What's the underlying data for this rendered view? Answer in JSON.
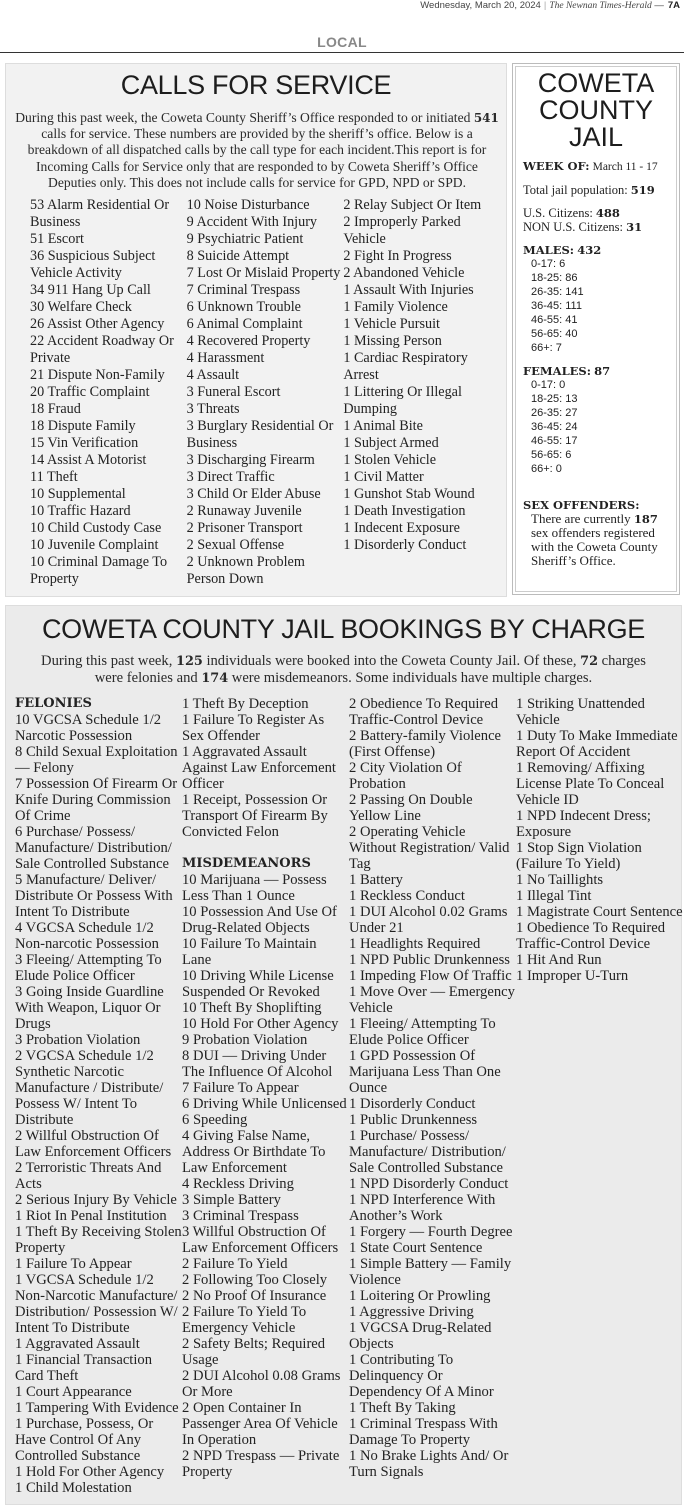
{
  "masthead": {
    "date": "Wednesday, March 20, 2024",
    "publication": "The Newnan Times-Herald",
    "page": "7A"
  },
  "section": "LOCAL",
  "calls": {
    "title": "CALLS FOR SERVICE",
    "intro_before": "During this past week, the Coweta County Sheriff’s Office responded to or initiated ",
    "count": "541",
    "intro_after": " calls for service. These numbers are provided by the sheriff’s office. Below is a breakdown of all dispatched calls by the call type for each incident.This report is for Incoming Calls for Service only that are responded to by Coweta Sheriff’s Office Deputies only. This does not include calls for service for GPD, NPD or SPD.",
    "items": [
      "53 Alarm Residential Or Business",
      "51 Escort",
      "36 Suspicious Subject Vehicle Activity",
      "34 911 Hang Up Call",
      "30 Welfare Check",
      "26 Assist Other Agency",
      "22 Accident Roadway Or Private",
      "21 Dispute Non-Family",
      "20 Traffic Complaint",
      "18 Fraud",
      "18 Dispute Family",
      "15 Vin Verification",
      "14 Assist A Motorist",
      "11 Theft",
      "10 Supplemental",
      "10 Traffic Hazard",
      "10 Child Custody Case",
      "10 Juvenile Complaint",
      "10 Criminal Damage To Property",
      "10 Noise Disturbance",
      "9 Accident With Injury",
      "9 Psychiatric Patient",
      "8 Suicide Attempt",
      "7 Lost Or Mislaid Property",
      "7 Criminal Trespass",
      "6 Unknown Trouble",
      "6 Animal Complaint",
      "4 Recovered Property",
      "4 Harassment",
      "4 Assault",
      "3 Funeral Escort",
      "3 Threats",
      "3 Burglary Residential Or Business",
      "3 Discharging Firearm",
      "3 Direct Traffic",
      "3 Child Or Elder Abuse",
      "2 Runaway Juvenile",
      "2 Prisoner Transport",
      "2 Sexual Offense",
      "2 Unknown Problem Person Down",
      "2 Relay Subject Or Item",
      "2 Improperly Parked Vehicle",
      "2 Fight In Progress",
      "2 Abandoned Vehicle",
      "1 Assault With Injuries",
      "1 Family Violence",
      "1 Vehicle Pursuit",
      "1 Missing Person",
      "1 Cardiac Respiratory Arrest",
      "1 Littering Or Illegal Dumping",
      "1 Animal Bite",
      "1 Subject Armed",
      "1 Stolen Vehicle",
      "1 Civil Matter",
      "1 Gunshot Stab Wound",
      "1 Death Investigation",
      "1 Indecent Exposure",
      "1 Disorderly Conduct"
    ]
  },
  "jail": {
    "title": "COWETA COUNTY JAIL",
    "week_label": "WEEK OF:",
    "week_value": "March 11 - 17",
    "population_label": "Total jail population:",
    "population_value": "519",
    "us_label": "U.S. Citizens:",
    "us_value": "488",
    "non_us_label": "NON U.S. Citizens:",
    "non_us_value": "31",
    "males_label": "MALES:",
    "males_value": "432",
    "males_ages": [
      "0-17: 6",
      "18-25: 86",
      "26-35: 141",
      "36-45: 111",
      "46-55: 41",
      "56-65: 40",
      "66+: 7"
    ],
    "females_label": "FEMALES:",
    "females_value": "87",
    "females_ages": [
      "0-17: 0",
      "18-25: 13",
      "26-35: 27",
      "36-45: 24",
      "46-55: 17",
      "56-65: 6",
      "66+: 0"
    ],
    "sex_offenders_label": "SEX OFFENDERS:",
    "sex_offenders_before": "There are currently ",
    "sex_offenders_value": "187",
    "sex_offenders_after": " sex offenders registered with the Coweta County Sheriff’s Office."
  },
  "bookings": {
    "title": "COWETA COUNTY JAIL BOOKINGS BY CHARGE",
    "intro_a": "During this past week, ",
    "individuals": "125",
    "intro_b": " individuals were booked into the Coweta County Jail. Of these, ",
    "felony_count": "72",
    "intro_c": " charges were felonies and ",
    "misdemeanor_count": "174",
    "intro_d": " were misdemeanors. Some individuals have multiple charges.",
    "felonies_heading": "FELONIES",
    "felonies": [
      "10 VGCSA Schedule 1/2 Narcotic Possession",
      "8 Child Sexual Exploitation — Felony",
      "7 Possession Of Firearm Or Knife During Commission Of Crime",
      "6 Purchase/ Possess/ Manufacture/ Distribution/ Sale Controlled Substance",
      "5 Manufacture/ Deliver/ Distribute Or Possess With Intent To Distribute",
      "4 VGCSA Schedule 1/2 Non-narcotic Possession",
      "3 Fleeing/ Attempting To Elude Police Officer",
      "3 Going Inside Guardline With Weapon, Liquor Or Drugs",
      "3 Probation Violation",
      "2 VGCSA Schedule 1/2 Synthetic Narcotic Manufacture / Distribute/ Possess W/ Intent To Distribute",
      "2 Willful Obstruction Of Law Enforcement Officers",
      "2 Terroristic Threats And Acts",
      "2 Serious Injury By Vehicle",
      "1 Riot In Penal Institution",
      "1 Theft By Receiving Stolen Property",
      "1 Failure To Appear",
      "1 VGCSA Schedule 1/2 Non-Narcotic Manufacture/ Distribution/ Possession W/ Intent To Distribute",
      "1 Aggravated Assault",
      "1 Financial Transaction Card Theft",
      "1 Court Appearance",
      "1 Tampering With Evidence",
      "1 Purchase, Possess, Or Have Control Of Any Controlled Substance",
      "1 Hold For Other Agency",
      "1 Child Molestation",
      "1 Theft By Deception",
      "1 Failure To Register As Sex Offender",
      "1 Aggravated Assault Against Law Enforcement Officer",
      "1 Receipt, Possession Or Transport Of Firearm By Convicted Felon"
    ],
    "misdemeanors_heading": "MISDEMEANORS",
    "misdemeanors": [
      "10 Marijuana — Possess Less Than 1 Ounce",
      "10 Possession And Use Of Drug-Related Objects",
      "10 Failure To Maintain Lane",
      "10 Driving While License Suspended Or Revoked",
      "10 Theft By Shoplifting",
      "10 Hold For Other Agency",
      "9 Probation Violation",
      "8 DUI — Driving Under The Influence Of Alcohol",
      "7 Failure To Appear",
      "6 Driving While Unlicensed",
      "6 Speeding",
      "4 Giving False Name, Address Or Birthdate To Law Enforcement",
      "4 Reckless Driving",
      "3 Simple Battery",
      "3 Criminal Trespass",
      "3 Willful Obstruction Of Law Enforcement Officers",
      "2 Failure To Yield",
      "2 Following Too Closely",
      "2 No Proof Of Insurance",
      "2 Failure To Yield To Emergency Vehicle",
      "2 Safety Belts; Required Usage",
      "2 DUI Alcohol 0.08 Grams Or More",
      "2 Open Container In Passenger Area Of Vehicle In Operation",
      "2 NPD Trespass — Private Property",
      "2 Obedience To Required Traffic-Control Device",
      "2 Battery-family Violence (First Offense)",
      "2 City Violation Of Probation",
      "2 Passing On Double Yellow Line",
      "2 Operating Vehicle Without Registration/ Valid Tag",
      "1 Battery",
      "1 Reckless Conduct",
      "1 DUI Alcohol 0.02 Grams Under 21",
      "1 Headlights Required",
      "1 NPD Public Drunkenness",
      "1 Impeding Flow Of Traffic",
      "1 Move Over — Emergency Vehicle",
      "1 Fleeing/ Attempting To Elude Police Officer",
      "1 GPD Possession Of Marijuana Less Than One Ounce",
      "1 Disorderly Conduct",
      "1 Public Drunkenness",
      "1 Purchase/ Possess/ Manufacture/ Distribution/ Sale Controlled Substance",
      "1 NPD Disorderly Conduct",
      "1 NPD Interference With Another’s Work",
      "1 Forgery — Fourth Degree",
      "1 State Court Sentence",
      "1 Simple Battery — Family Violence",
      "1 Loitering Or Prowling",
      "1 Aggressive Driving",
      "1 VGCSA Drug-Related Objects",
      "1 Contributing To Delinquency Or Dependency Of A Minor",
      "1 Theft By Taking",
      "1 Criminal Trespass With Damage To Property",
      "1 No Brake Lights And/ Or Turn Signals",
      "1 Striking Unattended Vehicle",
      "1 Duty To Make Immediate Report Of Accident",
      "1 Removing/ Affixing License Plate To Conceal Vehicle ID",
      "1 NPD Indecent Dress; Exposure",
      "1 Stop Sign Violation (Failure To Yield)",
      "1 No Taillights",
      "1 Illegal Tint",
      "1 Magistrate Court Sentence",
      "1 Obedience To Required Traffic-Control Device",
      "1 Hit And Run",
      "1 Improper U-Turn"
    ]
  }
}
